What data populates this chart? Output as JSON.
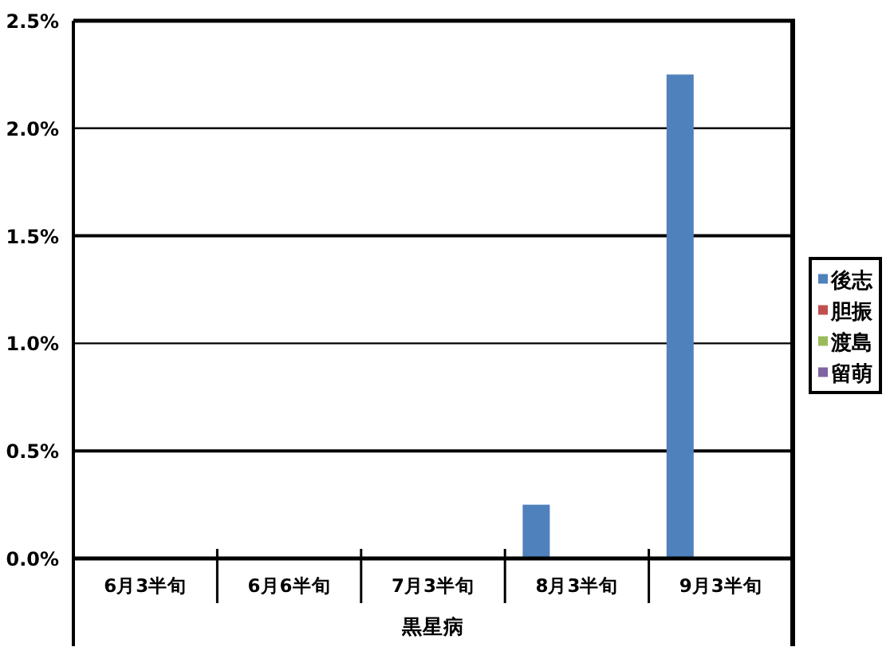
{
  "chart_data": {
    "type": "bar",
    "categories": [
      "6月3半旬",
      "6月6半旬",
      "7月3半旬",
      "8月3半旬",
      "9月3半旬"
    ],
    "xlabel": "黒星病",
    "series": [
      {
        "name": "後志",
        "color": "#4f81bd",
        "values": [
          0,
          0,
          0,
          0.25,
          2.25
        ]
      },
      {
        "name": "胆振",
        "color": "#c0504d",
        "values": [
          0,
          0,
          0,
          0,
          0
        ]
      },
      {
        "name": "渡島",
        "color": "#9bbb59",
        "values": [
          0,
          0,
          0,
          0,
          0
        ]
      },
      {
        "name": "留萌",
        "color": "#8064a2",
        "values": [
          0,
          0,
          0,
          0,
          0
        ]
      }
    ],
    "ylim": [
      0,
      2.5
    ],
    "yticks": [
      {
        "value": 0,
        "label": "0.0%"
      },
      {
        "value": 0.5,
        "label": "0.5%"
      },
      {
        "value": 1,
        "label": "1.0%"
      },
      {
        "value": 1.5,
        "label": "1.5%"
      },
      {
        "value": 2,
        "label": "2.0%"
      },
      {
        "value": 2.5,
        "label": "2.5%"
      }
    ],
    "grid": "y",
    "legend": "right"
  }
}
